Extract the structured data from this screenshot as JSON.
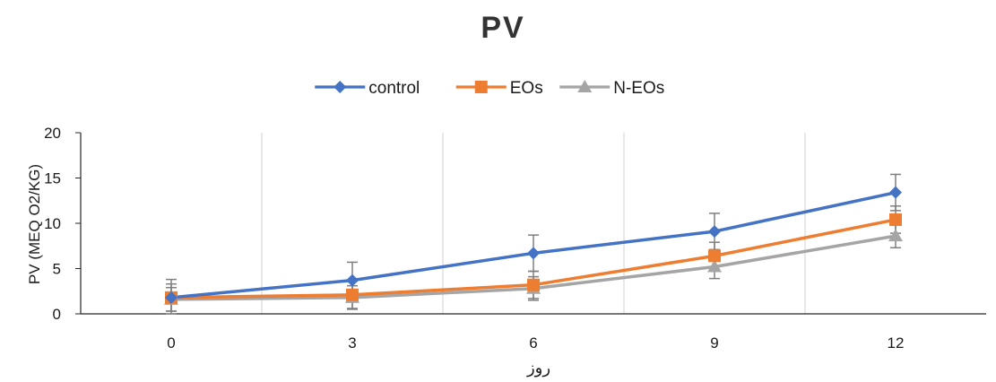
{
  "chart_data": {
    "type": "line",
    "title": "PV",
    "xlabel": "روز",
    "ylabel": "PV (MEQ O2/KG)",
    "categories": [
      "0",
      "3",
      "6",
      "9",
      "12"
    ],
    "ylim": [
      0,
      20
    ],
    "yticks": [
      "0",
      "5",
      "10",
      "15",
      "20"
    ],
    "grid": "vertical",
    "legend_position": "top",
    "error_bars": true,
    "series": [
      {
        "name": "control",
        "color": "#4472C4",
        "marker": "diamond",
        "values": [
          1.8,
          3.7,
          6.7,
          9.1,
          13.4
        ],
        "errors": [
          2.0,
          2.0,
          2.0,
          2.0,
          2.0
        ]
      },
      {
        "name": "EOs",
        "color": "#ED7D31",
        "marker": "square",
        "values": [
          1.8,
          2.1,
          3.2,
          6.4,
          10.4
        ],
        "errors": [
          1.5,
          1.5,
          1.5,
          1.5,
          1.5
        ]
      },
      {
        "name": "N-EOs",
        "color": "#A5A5A5",
        "marker": "triangle",
        "values": [
          1.6,
          1.8,
          2.8,
          5.2,
          8.6
        ],
        "errors": [
          1.3,
          1.3,
          1.3,
          1.3,
          1.3
        ]
      }
    ]
  }
}
